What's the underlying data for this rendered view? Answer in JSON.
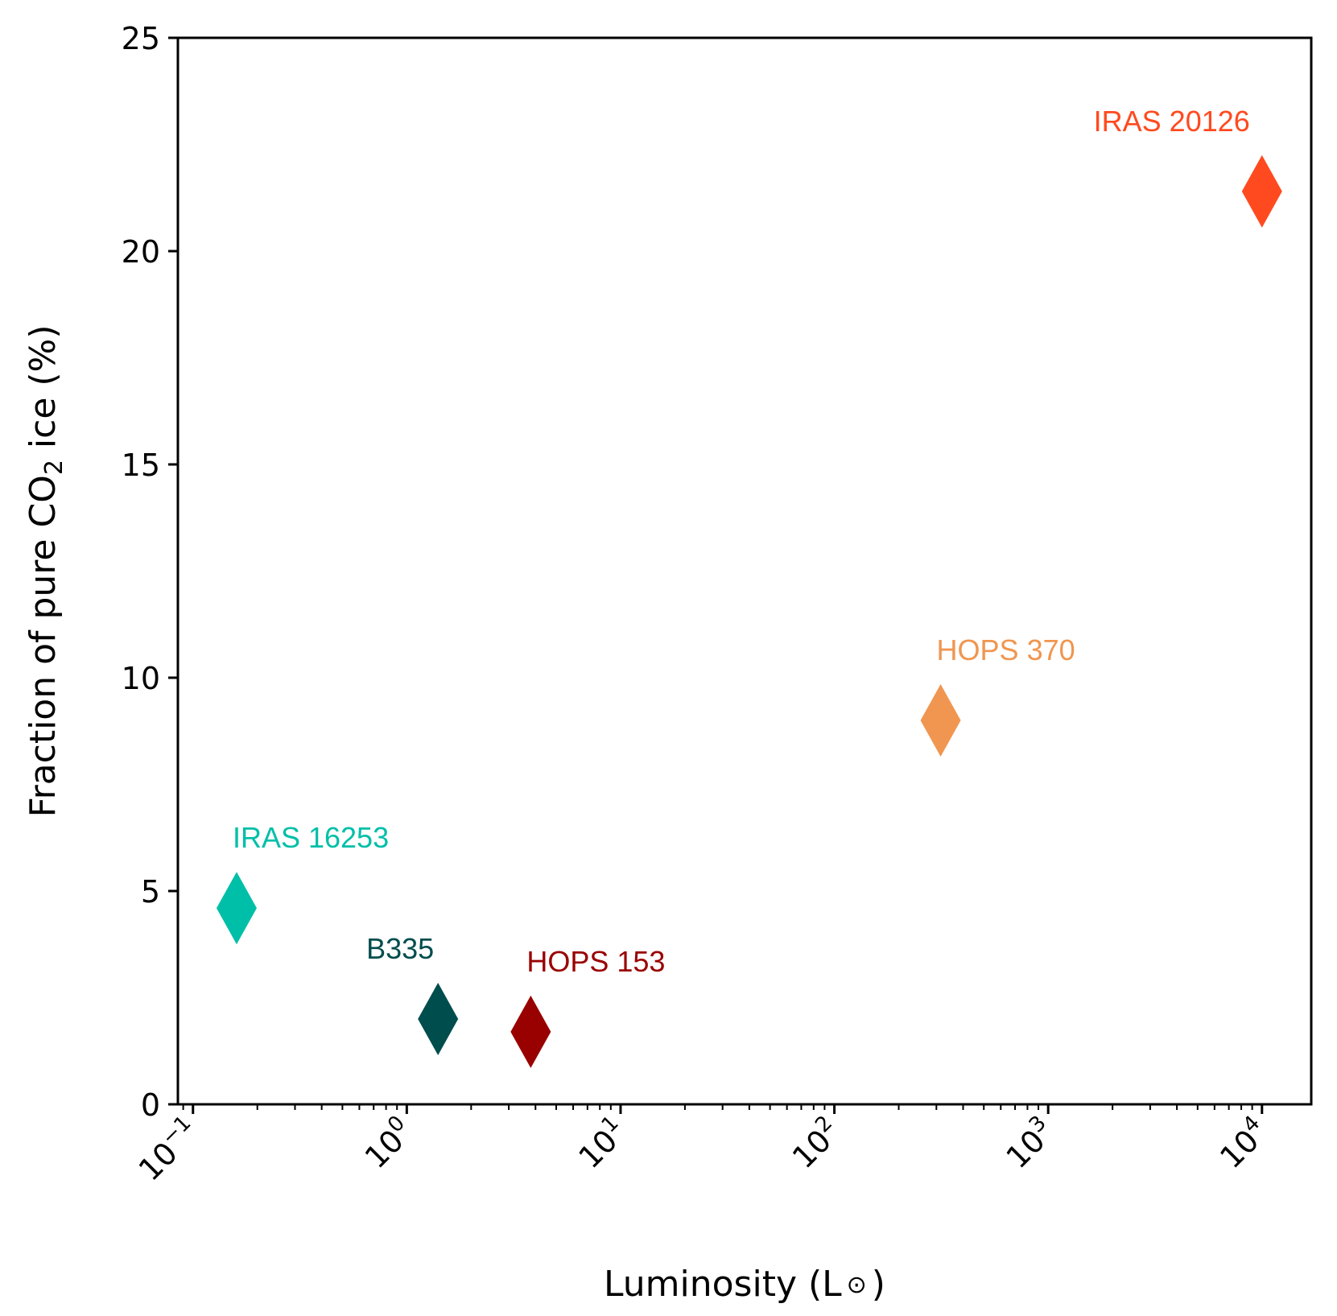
{
  "chart_data": {
    "type": "scatter",
    "title": "",
    "xlabel": "Luminosity (L",
    "xlabel_symbol": "⊙",
    "xlabel_close": ")",
    "ylabel_pre": "Fraction of pure CO",
    "ylabel_sub": "2",
    "ylabel_post": " ice (%)",
    "xscale": "log",
    "xlim": [
      0.085,
      17000
    ],
    "ylim": [
      0,
      25
    ],
    "yticks": [
      0,
      5,
      10,
      15,
      20,
      25
    ],
    "xticks": [
      {
        "value": 0.1,
        "base": "10",
        "exp": "−1"
      },
      {
        "value": 1,
        "base": "10",
        "exp": "0"
      },
      {
        "value": 10,
        "base": "10",
        "exp": "1"
      },
      {
        "value": 100,
        "base": "10",
        "exp": "2"
      },
      {
        "value": 1000,
        "base": "10",
        "exp": "3"
      },
      {
        "value": 10000,
        "base": "10",
        "exp": "4"
      }
    ],
    "marker": "thin-diamond",
    "points": [
      {
        "name": "IRAS 16253",
        "x": 0.16,
        "y": 4.6,
        "color": "#00BFA8"
      },
      {
        "name": "B335",
        "x": 1.4,
        "y": 2.0,
        "color": "#004D4D"
      },
      {
        "name": "HOPS 153",
        "x": 3.8,
        "y": 1.7,
        "color": "#990000"
      },
      {
        "name": "HOPS 370",
        "x": 314,
        "y": 9.0,
        "color": "#F09650"
      },
      {
        "name": "IRAS 20126",
        "x": 10000,
        "y": 21.4,
        "color": "#FF4A1F"
      }
    ]
  }
}
